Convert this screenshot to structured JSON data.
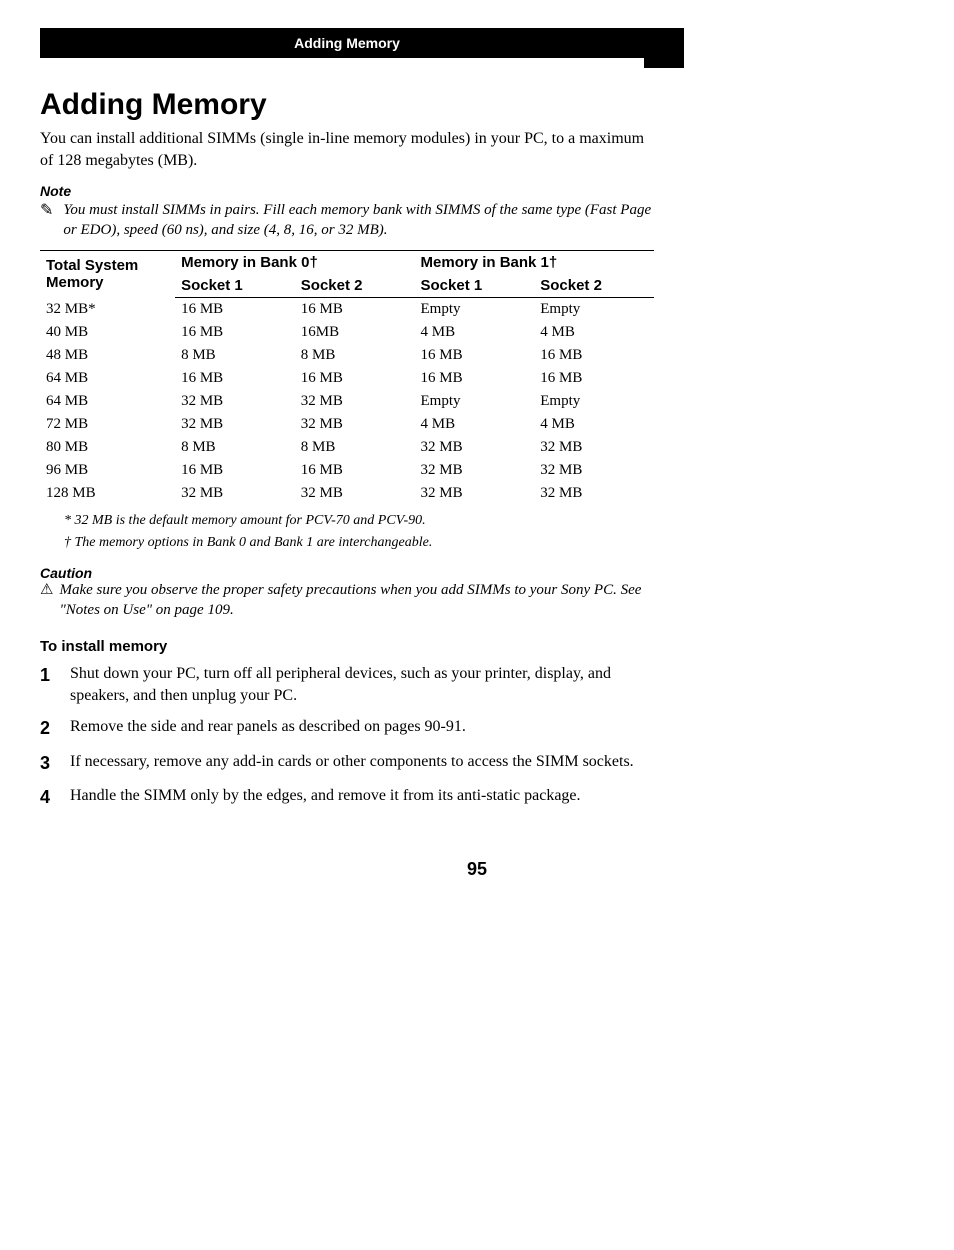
{
  "header": {
    "title": "Adding Memory"
  },
  "title": "Adding Memory",
  "intro": "You can install additional SIMMs (single in-line memory modules) in your PC, to a maximum of 128 megabytes (MB).",
  "note": {
    "label": "Note",
    "icon": "✎",
    "text": "You must install SIMMs in pairs. Fill each memory bank with SIMMS of the same type (Fast Page or EDO), speed (60 ns), and size (4, 8, 16, or 32 MB)."
  },
  "table": {
    "group_headers": {
      "total": "Total System Memory",
      "bank0": "Memory in Bank 0†",
      "bank1": "Memory in Bank 1†"
    },
    "sub_headers": {
      "b0s1": "Socket 1",
      "b0s2": "Socket 2",
      "b1s1": "Socket 1",
      "b1s2": "Socket 2"
    },
    "rows": [
      {
        "total": "32 MB*",
        "b0s1": "16 MB",
        "b0s2": "16 MB",
        "b1s1": "Empty",
        "b1s2": "Empty"
      },
      {
        "total": "40 MB",
        "b0s1": "16 MB",
        "b0s2": "16MB",
        "b1s1": "4 MB",
        "b1s2": "4 MB"
      },
      {
        "total": "48 MB",
        "b0s1": "8 MB",
        "b0s2": "8 MB",
        "b1s1": "16 MB",
        "b1s2": "16 MB"
      },
      {
        "total": "64 MB",
        "b0s1": "16 MB",
        "b0s2": "16 MB",
        "b1s1": "16 MB",
        "b1s2": "16 MB"
      },
      {
        "total": "64 MB",
        "b0s1": "32 MB",
        "b0s2": "32 MB",
        "b1s1": "Empty",
        "b1s2": "Empty"
      },
      {
        "total": "72 MB",
        "b0s1": "32 MB",
        "b0s2": "32 MB",
        "b1s1": "4 MB",
        "b1s2": "4 MB"
      },
      {
        "total": "80 MB",
        "b0s1": "8 MB",
        "b0s2": "8 MB",
        "b1s1": "32 MB",
        "b1s2": "32 MB"
      },
      {
        "total": "96 MB",
        "b0s1": "16 MB",
        "b0s2": "16 MB",
        "b1s1": "32 MB",
        "b1s2": "32 MB"
      },
      {
        "total": "128 MB",
        "b0s1": "32 MB",
        "b0s2": "32 MB",
        "b1s1": "32 MB",
        "b1s2": "32 MB"
      }
    ]
  },
  "footnotes": {
    "star": "* 32 MB is the default memory amount for PCV-70 and PCV-90.",
    "dagger": "† The memory options in Bank 0 and Bank 1 are interchangeable."
  },
  "caution": {
    "label": "Caution",
    "icon": "⚠",
    "text": "Make sure you observe the proper safety precautions when you add SIMMs to your Sony PC. See \"Notes on Use\" on page 109."
  },
  "install": {
    "heading": "To install memory",
    "steps": [
      "Shut down your PC, turn off all peripheral devices, such as your printer, display, and speakers, and then unplug your PC.",
      "Remove the side and rear panels as described on pages 90-91.",
      "If necessary, remove any add-in cards or other components to access the SIMM sockets.",
      "Handle the SIMM only by the edges, and remove it from its anti-static package."
    ]
  },
  "page_number": "95"
}
